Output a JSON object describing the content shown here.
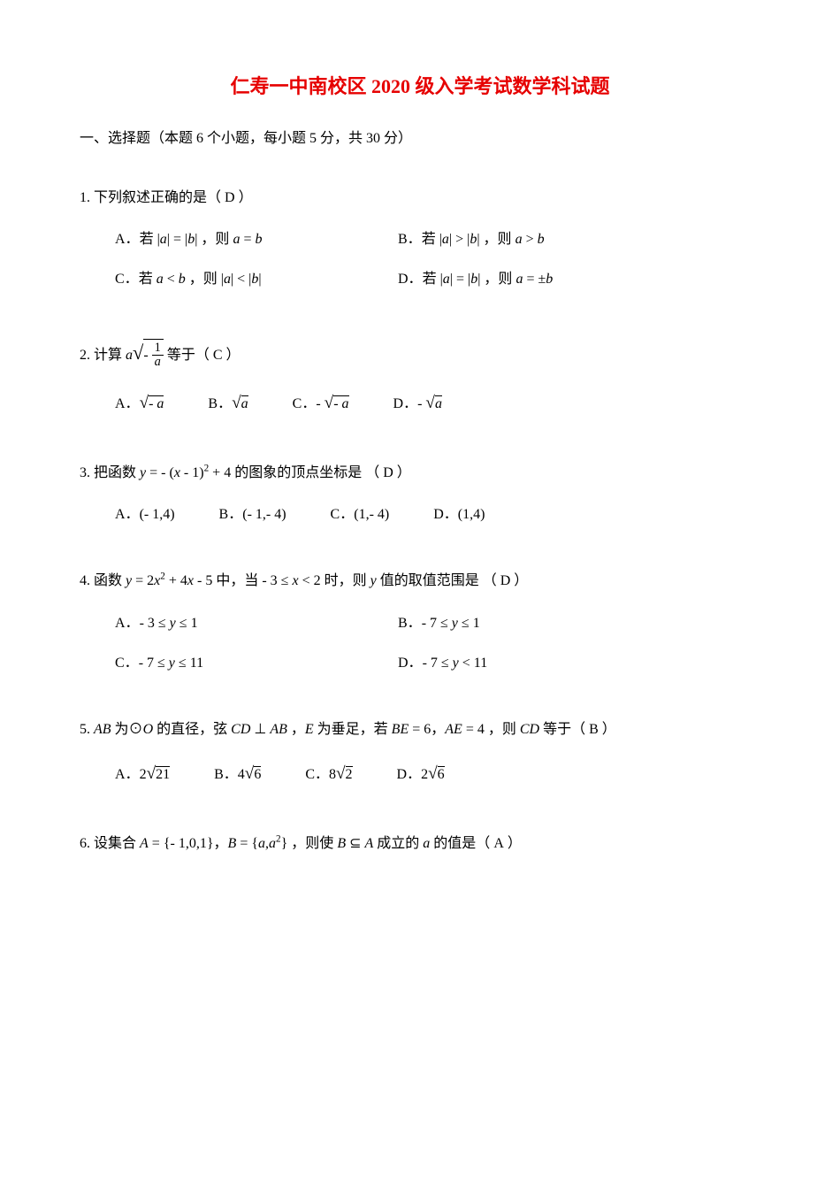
{
  "title_color": "#e60000",
  "title": "仁寿一中南校区 2020 级入学考试数学科试题",
  "section_header": "一、选择题（本题 6 个小题，每小题 5 分，共 30 分）",
  "questions": [
    {
      "num": "1.",
      "stem_prefix": "下列叙述正确的是（",
      "answer": "D",
      "stem_suffix": "）",
      "options": [
        {
          "label": "A．",
          "text_html": "若 |<i>a</i>| = |<i>b</i>| ，则 <i>a</i> = <i>b</i>"
        },
        {
          "label": "B．",
          "text_html": "若 |<i>a</i>| &gt; |<i>b</i>| ，则 <i>a</i> &gt; <i>b</i>"
        },
        {
          "label": "C．",
          "text_html": "若 <i>a</i> &lt; <i>b</i> ，则 |<i>a</i>| &lt; |<i>b</i>|"
        },
        {
          "label": "D．",
          "text_html": "若 |<i>a</i>| = |<i>b</i>| ，则 <i>a</i> = ±<i>b</i>"
        }
      ],
      "layout": "2col"
    },
    {
      "num": "2.",
      "stem_html": "计算 <span class='math'>a</span><span class='mathn' style='font-size:1.4em;'>√</span><span style='border-top:1px solid #000;display:inline-block;'><span class='mathn'>- </span><span class='frac'><span class='num mathn'>1</span><span class='den math'>a</span></span></span> 等于（",
      "answer": "C",
      "stem_suffix": "）",
      "options": [
        {
          "label": "A．",
          "text_html": "<span class='mathn' style='font-size:1.2em;'>√</span><span style='border-top:1px solid #000;'><span class='mathn'>- </span><span class='math'>a</span></span>"
        },
        {
          "label": "B．",
          "text_html": "<span class='mathn' style='font-size:1.2em;'>√</span><span style='border-top:1px solid #000;'><span class='math'>a</span></span>"
        },
        {
          "label": "C．",
          "text_html": "<span class='mathn'>- </span><span class='mathn' style='font-size:1.2em;'>√</span><span style='border-top:1px solid #000;'><span class='mathn'>- </span><span class='math'>a</span></span>"
        },
        {
          "label": "D．",
          "text_html": "<span class='mathn'>- </span><span class='mathn' style='font-size:1.2em;'>√</span><span style='border-top:1px solid #000;'><span class='math'>a</span></span>"
        }
      ],
      "layout": "4col"
    },
    {
      "num": "3.",
      "stem_html": "把函数 <span class='math'>y</span> = <span class='mathn'>-</span> (<span class='math'>x</span> <span class='mathn'>- 1</span>)<sup><span class='mathn'>2</span></sup> <span class='mathn'>+ 4</span> 的图象的顶点坐标是 （",
      "answer": "D",
      "stem_suffix": "）",
      "options": [
        {
          "label": "A．",
          "text_html": "<span class='mathn'>(- 1,4)</span>"
        },
        {
          "label": "B．",
          "text_html": "<span class='mathn'>(- 1,- 4)</span>"
        },
        {
          "label": "C．",
          "text_html": "<span class='mathn'>(1,- 4)</span>"
        },
        {
          "label": "D．",
          "text_html": "<span class='mathn'>(1,4)</span>"
        }
      ],
      "layout": "4col"
    },
    {
      "num": "4.",
      "stem_html": "函数 <span class='math'>y</span> <span class='mathn'>= 2</span><span class='math'>x</span><sup><span class='mathn'>2</span></sup> <span class='mathn'>+ 4</span><span class='math'>x</span> <span class='mathn'>- 5</span> 中，当 <span class='mathn'>- 3 ≤ </span><span class='math'>x</span><span class='mathn'> &lt; 2</span> 时，则 <span class='math'>y</span> 值的取值范围是 （",
      "answer": "D",
      "stem_suffix": "）",
      "options": [
        {
          "label": "A．",
          "text_html": "<span class='mathn'>- 3 ≤ </span><span class='math'>y</span><span class='mathn'> ≤ 1</span>"
        },
        {
          "label": "B．",
          "text_html": "<span class='mathn'>- 7 ≤ </span><span class='math'>y</span><span class='mathn'> ≤ 1</span>"
        },
        {
          "label": "C．",
          "text_html": "<span class='mathn'>- 7 ≤ </span><span class='math'>y</span><span class='mathn'> ≤ 11</span>"
        },
        {
          "label": "D．",
          "text_html": "<span class='mathn'>- 7 ≤ </span><span class='math'>y</span><span class='mathn'> &lt; 11</span>"
        }
      ],
      "layout": "2col"
    },
    {
      "num": "5.",
      "stem_html": "<span class='math'>AB</span> 为⊙<span class='math'>O</span> 的直径，弦 <span class='math'>CD</span> ⊥ <span class='math'>AB</span> ，<span class='math'>E</span> 为垂足，若 <span class='math'>BE</span> <span class='mathn'>= 6</span>，<span class='math'>AE</span> <span class='mathn'>= 4</span> ，则 <span class='math'>CD</span> 等于（",
      "answer": "B",
      "stem_suffix": "）",
      "options": [
        {
          "label": "A．",
          "text_html": "<span class='mathn'>2</span><span class='mathn' style='font-size:1.2em;'>√</span><span style='border-top:1px solid #000;'><span class='mathn'>21</span></span>"
        },
        {
          "label": "B．",
          "text_html": "<span class='mathn'>4</span><span class='mathn' style='font-size:1.2em;'>√</span><span style='border-top:1px solid #000;'><span class='mathn'>6</span></span>"
        },
        {
          "label": "C．",
          "text_html": "<span class='mathn'>8</span><span class='mathn' style='font-size:1.2em;'>√</span><span style='border-top:1px solid #000;'><span class='mathn'>2</span></span>"
        },
        {
          "label": "D．",
          "text_html": "<span class='mathn'>2</span><span class='mathn' style='font-size:1.2em;'>√</span><span style='border-top:1px solid #000;'><span class='mathn'>6</span></span>"
        }
      ],
      "layout": "4col"
    },
    {
      "num": "6.",
      "stem_html": "设集合 <span class='math'>A</span> <span class='mathn'>= {- 1,0,1}</span>，<span class='math'>B</span> <span class='mathn'>= {</span><span class='math'>a</span><span class='mathn'>,</span><span class='math'>a</span><sup><span class='mathn'>2</span></sup><span class='mathn'>}</span> ，则使 <span class='math'>B</span> ⊆ <span class='math'>A</span> 成立的 <span class='math'>a</span> 的值是（",
      "answer": "A",
      "stem_suffix": "）",
      "options": [],
      "layout": "none"
    }
  ]
}
